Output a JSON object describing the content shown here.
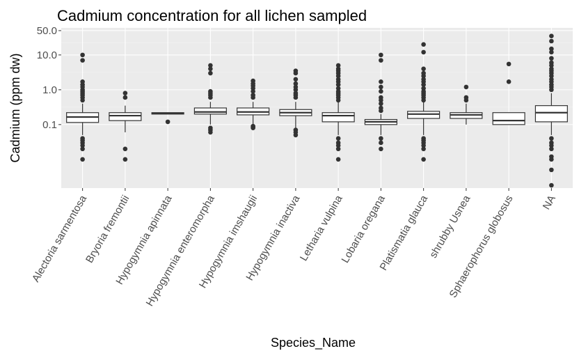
{
  "chart_data": {
    "type": "boxplot",
    "title": "Cadmium concentration for all lichen sampled",
    "xlabel": "Species_Name",
    "ylabel": "Cadmium (ppm dw)",
    "y_scale": "log10",
    "y_ticks": [
      0.1,
      1.0,
      10.0,
      50.0
    ],
    "y_tick_labels": [
      "0.1",
      "1.0",
      "10.0",
      "50.0"
    ],
    "ylim": [
      0.0015,
      60
    ],
    "grid": true,
    "legend": "none",
    "colors": {
      "panel_background": "#ebebeb",
      "grid_major": "#ffffff",
      "grid_minor": "#f5f5f5",
      "box_fill": "#ffffff",
      "box_stroke": "#333333",
      "outlier": "#333333"
    },
    "categories": [
      "Alectoria sarmentosa",
      "Bryoria fremontii",
      "Hypogymnia apinnata",
      "Hypogymnia enteromorpha",
      "Hypogymnia imshaugii",
      "Hypogymnia inactiva",
      "Letharia vulpina",
      "Lobaria oregana",
      "Platismatia glauca",
      "shrubby Usnea",
      "Sphaerophorus globosus",
      "NA"
    ],
    "boxes": [
      {
        "q1": 0.115,
        "median": 0.165,
        "q3": 0.22,
        "whisker_low": 0.05,
        "whisker_high": 0.4,
        "outliers": [
          10,
          7,
          1.7,
          1.4,
          1.2,
          1.0,
          0.9,
          0.8,
          0.7,
          0.6,
          0.5,
          0.04,
          0.035,
          0.03,
          0.025,
          0.02,
          0.01
        ]
      },
      {
        "q1": 0.13,
        "median": 0.18,
        "q3": 0.22,
        "whisker_low": 0.06,
        "whisker_high": 0.35,
        "outliers": [
          0.8,
          0.6,
          0.02,
          0.01
        ]
      },
      {
        "q1": 0.2,
        "median": 0.21,
        "q3": 0.22,
        "whisker_low": 0.2,
        "whisker_high": 0.22,
        "outliers": [
          0.12
        ]
      },
      {
        "q1": 0.2,
        "median": 0.23,
        "q3": 0.3,
        "whisker_low": 0.1,
        "whisker_high": 0.45,
        "outliers": [
          5,
          4,
          3,
          0.9,
          0.8,
          0.7,
          0.6,
          0.08,
          0.07,
          0.06
        ]
      },
      {
        "q1": 0.19,
        "median": 0.23,
        "q3": 0.3,
        "whisker_low": 0.1,
        "whisker_high": 0.45,
        "outliers": [
          1.8,
          1.5,
          1.3,
          1.1,
          0.9,
          0.7,
          0.6,
          0.09,
          0.085,
          0.08
        ]
      },
      {
        "q1": 0.18,
        "median": 0.22,
        "q3": 0.27,
        "whisker_low": 0.08,
        "whisker_high": 0.45,
        "outliers": [
          3.5,
          3,
          2,
          1.5,
          1.2,
          1,
          0.8,
          0.7,
          0.6,
          0.07,
          0.06,
          0.05
        ]
      },
      {
        "q1": 0.12,
        "median": 0.18,
        "q3": 0.22,
        "whisker_low": 0.05,
        "whisker_high": 0.45,
        "outliers": [
          5,
          4,
          3.5,
          3,
          2.5,
          2,
          1.7,
          1.4,
          1.1,
          0.9,
          0.8,
          0.7,
          0.6,
          0.5,
          0.04,
          0.03,
          0.025,
          0.02,
          0.01
        ]
      },
      {
        "q1": 0.1,
        "median": 0.12,
        "q3": 0.14,
        "whisker_low": 0.05,
        "whisker_high": 0.2,
        "outliers": [
          10,
          7,
          1.7,
          1.2,
          0.9,
          0.6,
          0.5,
          0.4,
          0.3,
          0.25,
          0.04,
          0.03,
          0.02
        ]
      },
      {
        "q1": 0.15,
        "median": 0.2,
        "q3": 0.24,
        "whisker_low": 0.05,
        "whisker_high": 0.45,
        "outliers": [
          20,
          12,
          4,
          3,
          2.5,
          2,
          1.7,
          1.4,
          1.1,
          0.9,
          0.8,
          0.7,
          0.6,
          0.5,
          0.04,
          0.035,
          0.03,
          0.025,
          0.02,
          0.01
        ]
      },
      {
        "q1": 0.15,
        "median": 0.19,
        "q3": 0.22,
        "whisker_low": 0.1,
        "whisker_high": 0.4,
        "outliers": [
          1.2,
          0.6,
          0.5
        ]
      },
      {
        "q1": 0.1,
        "median": 0.13,
        "q3": 0.22,
        "whisker_low": 0.1,
        "whisker_high": 0.22,
        "outliers": [
          5.5,
          1.7
        ]
      },
      {
        "q1": 0.12,
        "median": 0.22,
        "q3": 0.35,
        "whisker_low": 0.05,
        "whisker_high": 0.8,
        "outliers": [
          35,
          25,
          15,
          12,
          8,
          6,
          5,
          4,
          3.5,
          3,
          2.5,
          2,
          1.7,
          1.4,
          1.2,
          1,
          0.04,
          0.03,
          0.025,
          0.02,
          0.012,
          0.01,
          0.005,
          0.0018
        ]
      }
    ]
  }
}
